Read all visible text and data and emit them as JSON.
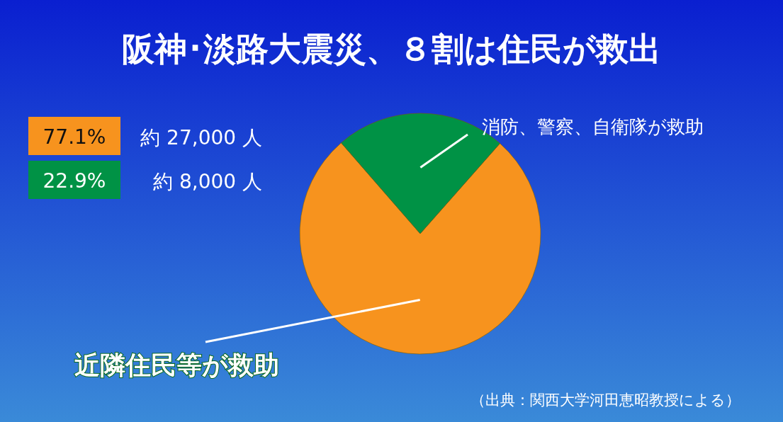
{
  "chart_data": {
    "type": "pie",
    "title": "阪神･淡路大震災、８割は住民が救出",
    "categories": [
      "近隣住民等が救助",
      "消防、警察、自衛隊が救助"
    ],
    "values": [
      77.1,
      22.9
    ],
    "colors": [
      "#f7931e",
      "#009245"
    ],
    "annotations": [
      "77.1%",
      "約 27,000 人",
      "22.9%",
      "約 8,000 人",
      "（出典：関西大学河田恵昭教授による）"
    ]
  }
}
